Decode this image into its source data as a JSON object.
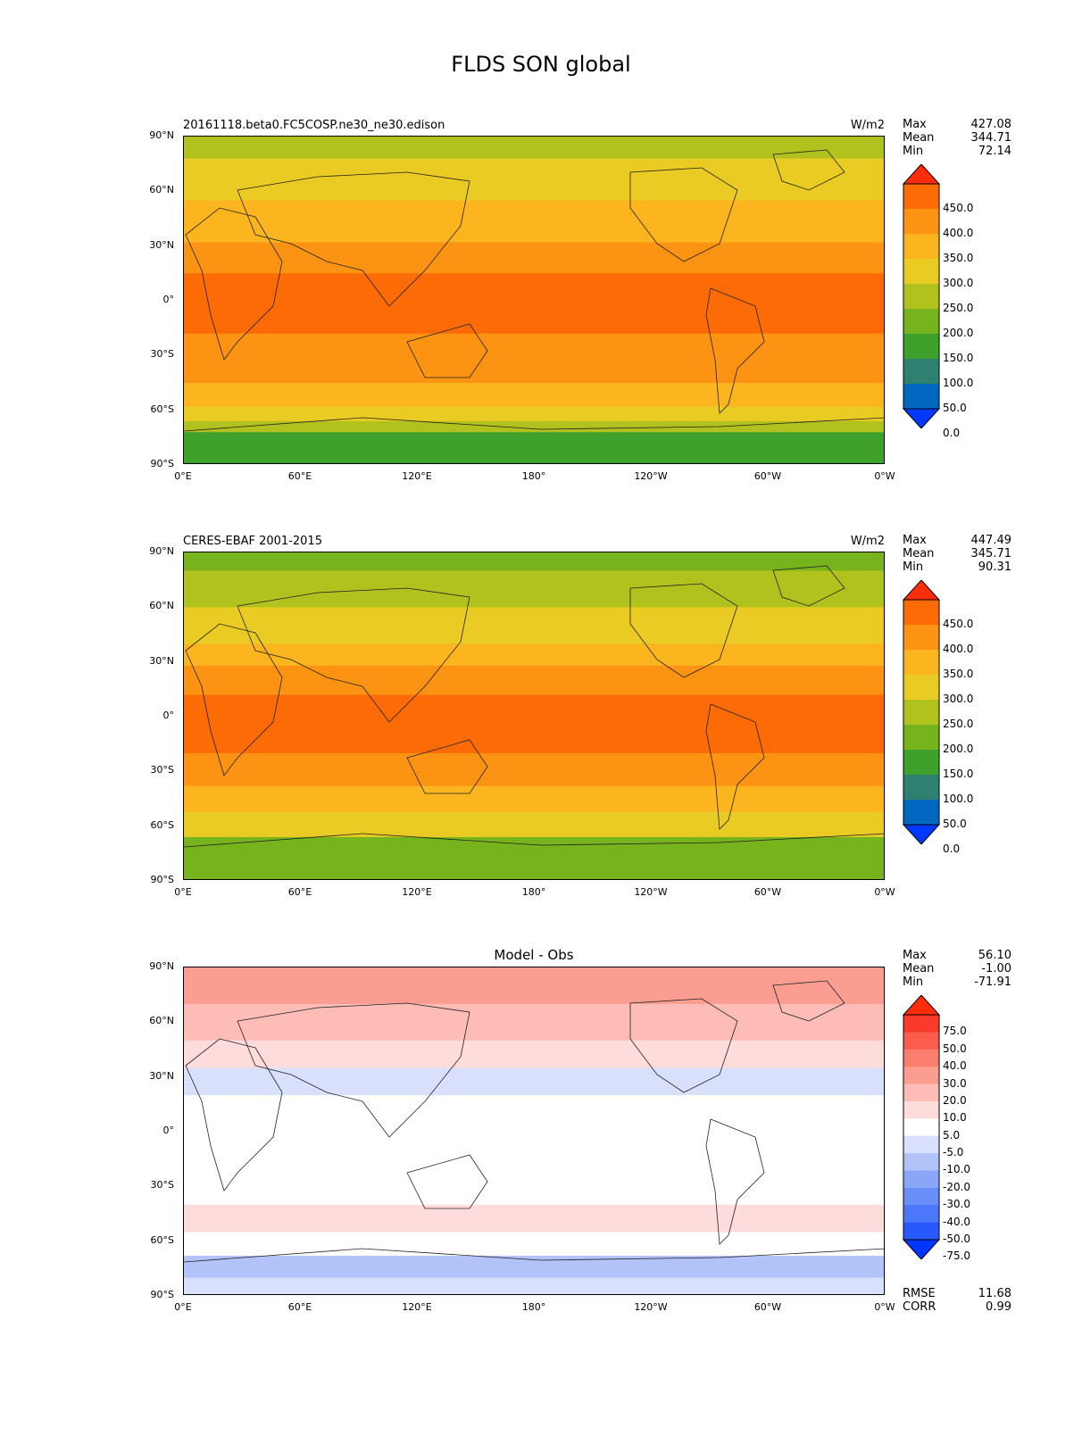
{
  "figure_title": "FLDS SON global",
  "panels": [
    {
      "case_label": "20161118.beta0.FC5COSP.ne30_ne30.edison",
      "units": "W/m2",
      "title": "",
      "stats": [
        {
          "label": "Max",
          "value": "427.08"
        },
        {
          "label": "Mean",
          "value": "344.71"
        },
        {
          "label": "Min",
          "value": "72.14"
        }
      ],
      "colorbar_labels": [
        "450.0",
        "400.0",
        "350.0",
        "300.0",
        "250.0",
        "200.0",
        "150.0",
        "100.0",
        "50.0",
        "0.0"
      ]
    },
    {
      "case_label": "CERES-EBAF 2001-2015",
      "units": "W/m2",
      "title": "",
      "stats": [
        {
          "label": "Max",
          "value": "447.49"
        },
        {
          "label": "Mean",
          "value": "345.71"
        },
        {
          "label": "Min",
          "value": "90.31"
        }
      ],
      "colorbar_labels": [
        "450.0",
        "400.0",
        "350.0",
        "300.0",
        "250.0",
        "200.0",
        "150.0",
        "100.0",
        "50.0",
        "0.0"
      ]
    },
    {
      "case_label": "",
      "units": "",
      "title": "Model - Obs",
      "stats": [
        {
          "label": "Max",
          "value": "56.10"
        },
        {
          "label": "Mean",
          "value": "-1.00"
        },
        {
          "label": "Min",
          "value": "-71.91"
        }
      ],
      "colorbar_labels": [
        "75.0",
        "50.0",
        "40.0",
        "30.0",
        "20.0",
        "10.0",
        "5.0",
        "-5.0",
        "-10.0",
        "-20.0",
        "-30.0",
        "-40.0",
        "-50.0",
        "-75.0"
      ]
    }
  ],
  "lat_ticks": [
    "90°N",
    "60°N",
    "30°N",
    "0°",
    "30°S",
    "60°S",
    "90°S"
  ],
  "lon_ticks": [
    "0°E",
    "60°E",
    "120°E",
    "180°",
    "120°W",
    "60°W",
    "0°W"
  ],
  "diff_stats": [
    {
      "label": "RMSE",
      "value": "11.68"
    },
    {
      "label": "CORR",
      "value": "0.99"
    }
  ],
  "colors": {
    "abs_scale": [
      "#0038ff",
      "#0068c0",
      "#2e8070",
      "#3ea12c",
      "#76b31c",
      "#b1c11e",
      "#e9cb23",
      "#fdb51f",
      "#fc9313",
      "#fc6b06",
      "#ff2d0a"
    ],
    "diff_scale": [
      "#0034ff",
      "#2759ff",
      "#4c77fb",
      "#6a8ef8",
      "#8ba6f6",
      "#b1c3f8",
      "#d8e0fb",
      "#ffffff",
      "#fedcdb",
      "#fdbdb6",
      "#fc9d92",
      "#fb7d6d",
      "#fb5c4c",
      "#fb3a2b",
      "#ff2d0a"
    ]
  },
  "map_fields": {
    "model": [
      {
        "lat": 90,
        "level": 5
      },
      {
        "lat": 78,
        "level": 6
      },
      {
        "lat": 55,
        "level": 7
      },
      {
        "lat": 32,
        "level": 8
      },
      {
        "lat": 15,
        "level": 9
      },
      {
        "lat": -18,
        "level": 8
      },
      {
        "lat": -45,
        "level": 7
      },
      {
        "lat": -58,
        "level": 6
      },
      {
        "lat": -66,
        "level": 5
      },
      {
        "lat": -72,
        "level": 3
      },
      {
        "lat": -90,
        "level": 3
      }
    ],
    "obs": [
      {
        "lat": 90,
        "level": 4
      },
      {
        "lat": 80,
        "level": 5
      },
      {
        "lat": 60,
        "level": 6
      },
      {
        "lat": 40,
        "level": 7
      },
      {
        "lat": 28,
        "level": 8
      },
      {
        "lat": 12,
        "level": 9
      },
      {
        "lat": -20,
        "level": 8
      },
      {
        "lat": -38,
        "level": 7
      },
      {
        "lat": -52,
        "level": 6
      },
      {
        "lat": -66,
        "level": 4
      },
      {
        "lat": -90,
        "level": 3
      }
    ],
    "diff": [
      {
        "lat": 90,
        "level": 10
      },
      {
        "lat": 70,
        "level": 9
      },
      {
        "lat": 50,
        "level": 8
      },
      {
        "lat": 35,
        "level": 6
      },
      {
        "lat": 20,
        "level": 7
      },
      {
        "lat": -20,
        "level": 7
      },
      {
        "lat": -40,
        "level": 8
      },
      {
        "lat": -55,
        "level": 7
      },
      {
        "lat": -68,
        "level": 5
      },
      {
        "lat": -80,
        "level": 6
      },
      {
        "lat": -90,
        "level": 7
      }
    ]
  }
}
